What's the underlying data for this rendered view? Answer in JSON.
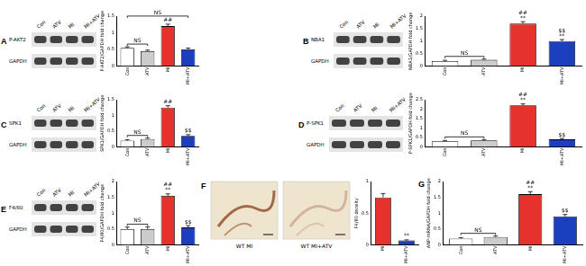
{
  "chart_data": [
    {
      "type": "bar",
      "y_label": "P-AKT2/GAPDH fold change",
      "categories": [
        "Con",
        "ATV",
        "MI",
        "MI+ATV"
      ],
      "values": [
        0.55,
        0.45,
        1.2,
        0.5
      ],
      "errors": [
        0.03,
        0.03,
        0.06,
        0.04
      ],
      "colors": [
        "#ffffff",
        "#cccccc",
        "#e5322d",
        "#1c3fbf"
      ],
      "ylim": [
        0,
        1.5
      ],
      "yticks": [
        0,
        0.5,
        1,
        1.5
      ],
      "grid": false,
      "annotations": [
        {
          "text": "##",
          "category": "MI"
        },
        {
          "text": "NS",
          "from": "Con",
          "to": "ATV"
        },
        {
          "text": "NS",
          "from": "Con",
          "to": "MI+ATV"
        }
      ]
    },
    {
      "type": "bar",
      "y_label": "NBA1/GAPDH fold change",
      "categories": [
        "Con",
        "ATV",
        "MI",
        "MI+ATV"
      ],
      "values": [
        0.2,
        0.25,
        1.7,
        1.0
      ],
      "errors": [
        0.03,
        0.03,
        0.08,
        0.06
      ],
      "colors": [
        "#ffffff",
        "#cccccc",
        "#e5322d",
        "#1c3fbf"
      ],
      "ylim": [
        0,
        2
      ],
      "yticks": [
        0,
        0.5,
        1,
        1.5,
        2
      ],
      "grid": false,
      "annotations": [
        {
          "text": "**",
          "category": "MI"
        },
        {
          "text": "##",
          "category": "MI"
        },
        {
          "text": "**",
          "category": "MI+ATV"
        },
        {
          "text": "$$",
          "category": "MI+ATV"
        },
        {
          "text": "NS",
          "from": "Con",
          "to": "ATV"
        }
      ]
    },
    {
      "type": "bar",
      "y_label": "SPK1/GAPDH fold change",
      "categories": [
        "Con",
        "ATV",
        "MI",
        "MI+ATV"
      ],
      "values": [
        0.2,
        0.25,
        1.25,
        0.35
      ],
      "errors": [
        0.03,
        0.03,
        0.06,
        0.04
      ],
      "colors": [
        "#ffffff",
        "#cccccc",
        "#e5322d",
        "#1c3fbf"
      ],
      "ylim": [
        0,
        1.5
      ],
      "yticks": [
        0,
        0.5,
        1,
        1.5
      ],
      "grid": false,
      "annotations": [
        {
          "text": "##",
          "category": "MI"
        },
        {
          "text": "$$",
          "category": "MI+ATV"
        },
        {
          "text": "NS",
          "from": "Con",
          "to": "ATV"
        }
      ]
    },
    {
      "type": "bar",
      "y_label": "P-SPK1/GAPDH fold change",
      "categories": [
        "Con",
        "ATV",
        "MI",
        "MI+ATV"
      ],
      "values": [
        0.3,
        0.35,
        2.2,
        0.4
      ],
      "errors": [
        0.04,
        0.04,
        0.08,
        0.05
      ],
      "colors": [
        "#ffffff",
        "#cccccc",
        "#e5322d",
        "#1c3fbf"
      ],
      "ylim": [
        0,
        2.5
      ],
      "yticks": [
        0,
        0.5,
        1,
        1.5,
        2,
        2.5
      ],
      "grid": false,
      "annotations": [
        {
          "text": "**",
          "category": "MI"
        },
        {
          "text": "##",
          "category": "MI"
        },
        {
          "text": "$$",
          "category": "MI+ATV"
        },
        {
          "text": "NS",
          "from": "Con",
          "to": "ATV"
        }
      ]
    },
    {
      "type": "bar",
      "y_label": "F4/80/GAPDH fold change",
      "categories": [
        "Con",
        "ATV",
        "MI",
        "MI+ATV"
      ],
      "values": [
        0.5,
        0.5,
        1.55,
        0.55
      ],
      "errors": [
        0.06,
        0.07,
        0.06,
        0.06
      ],
      "colors": [
        "#ffffff",
        "#cccccc",
        "#e5322d",
        "#1c3fbf"
      ],
      "ylim": [
        0,
        2
      ],
      "yticks": [
        0,
        0.5,
        1,
        1.5,
        2
      ],
      "grid": false,
      "annotations": [
        {
          "text": "**",
          "category": "MI"
        },
        {
          "text": "##",
          "category": "MI"
        },
        {
          "text": "$$",
          "category": "MI+ATV"
        },
        {
          "text": "NS",
          "from": "Con",
          "to": "ATV"
        }
      ]
    },
    {
      "type": "bar",
      "y_label": "F4/80 density",
      "categories": [
        "MI",
        "MI+ATV"
      ],
      "values": [
        0.75,
        0.07
      ],
      "errors": [
        0.06,
        0.01
      ],
      "colors": [
        "#e5322d",
        "#1c3fbf"
      ],
      "ylim": [
        0,
        1
      ],
      "yticks": [
        0,
        0.5,
        1
      ],
      "grid": false,
      "annotations": [
        {
          "text": "**",
          "category": "MI+ATV"
        }
      ]
    },
    {
      "type": "bar",
      "y_label": "ANP-mRNA/GAPDH fold change",
      "categories": [
        "Con",
        "ATV",
        "MI",
        "MI+ATV"
      ],
      "values": [
        0.2,
        0.25,
        1.6,
        0.9
      ],
      "errors": [
        0.03,
        0.03,
        0.08,
        0.06
      ],
      "colors": [
        "#ffffff",
        "#cccccc",
        "#e5322d",
        "#1c3fbf"
      ],
      "ylim": [
        0,
        2
      ],
      "yticks": [
        0,
        0.5,
        1,
        1.5,
        2
      ],
      "grid": false,
      "annotations": [
        {
          "text": "**",
          "category": "MI"
        },
        {
          "text": "##",
          "category": "MI"
        },
        {
          "text": "$$",
          "category": "MI+ATV"
        },
        {
          "text": "NS",
          "from": "Con",
          "to": "ATV"
        }
      ]
    }
  ],
  "panels": [
    {
      "label": "A",
      "blot_rows": [
        "P-AKT2",
        "GAPDH"
      ],
      "lanes": [
        "Con",
        "ATV",
        "MI",
        "MI+ATV"
      ]
    },
    {
      "label": "B",
      "blot_rows": [
        "NBA1",
        "GAPDH"
      ],
      "lanes": [
        "Con",
        "ATV",
        "MI",
        "MI+ATV"
      ]
    },
    {
      "label": "C",
      "blot_rows": [
        "SPK1",
        "GAPDH"
      ],
      "lanes": [
        "Con",
        "ATV",
        "MI",
        "MI+ATV"
      ]
    },
    {
      "label": "D",
      "blot_rows": [
        "P-SPK1",
        "GAPDH"
      ],
      "lanes": [
        "Con",
        "ATV",
        "MI",
        "MI+ATV"
      ]
    },
    {
      "label": "E",
      "blot_rows": [
        "F4/80",
        "GAPDH"
      ],
      "lanes": [
        "Con",
        "ATV",
        "MI",
        "MI+ATV"
      ]
    },
    {
      "label": "F",
      "images": [
        "WT MI",
        "WT MI+ATV"
      ]
    },
    {
      "label": "G"
    }
  ]
}
